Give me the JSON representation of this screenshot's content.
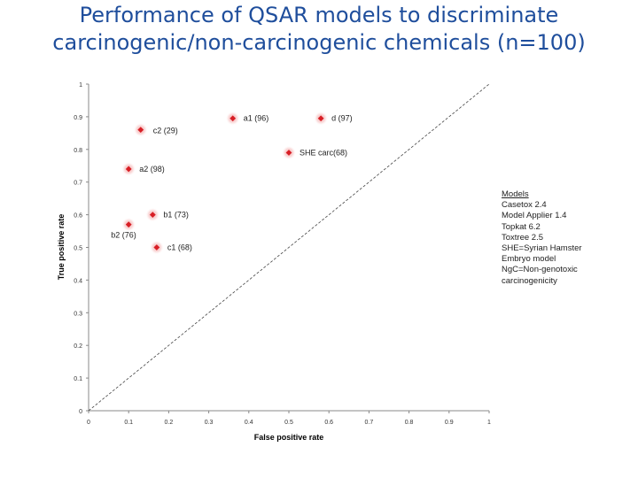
{
  "title_line1": "Performance of QSAR models to discriminate",
  "title_line2": "carcinogenic/non-carcinogenic chemicals (n=100)",
  "colors": {
    "title": "#1f4e9c",
    "point": "#d81f26",
    "glow": "#f4a7a7",
    "diagonal": "#444444"
  },
  "legend": {
    "heading": "Models",
    "items": [
      "Casetox 2.4",
      "Model Applier 1.4",
      "Topkat 6.2",
      "Toxtree 2.5",
      "SHE=Syrian Hamster",
      "Embryo model",
      "NgC=Non-genotoxic",
      "carcinogenicity"
    ]
  },
  "chart_data": {
    "type": "scatter",
    "title": "",
    "xlabel": "False positive rate",
    "ylabel": "True positive rate",
    "xlim": [
      0,
      1
    ],
    "ylim": [
      0,
      1
    ],
    "xticks": [
      "0",
      "0.1",
      "0.2",
      "0.3",
      "0.4",
      "0.5",
      "0.6",
      "0.7",
      "0.8",
      "0.9",
      "1"
    ],
    "yticks": [
      "0",
      "0.1",
      "0.2",
      "0.3",
      "0.4",
      "0.5",
      "0.6",
      "0.7",
      "0.8",
      "0.9",
      "1"
    ],
    "reference_line": {
      "from": [
        0,
        0
      ],
      "to": [
        1,
        1
      ],
      "style": "dashed"
    },
    "points": [
      {
        "label": "a1 (96)",
        "x": 0.36,
        "y": 0.895,
        "label_pos": "right"
      },
      {
        "label": "d (97)",
        "x": 0.58,
        "y": 0.895,
        "label_pos": "right"
      },
      {
        "label": "c2 (29)",
        "x": 0.13,
        "y": 0.86,
        "label_pos": "right-below"
      },
      {
        "label": "SHE carc(68)",
        "x": 0.5,
        "y": 0.79,
        "label_pos": "right"
      },
      {
        "label": "a2 (98)",
        "x": 0.1,
        "y": 0.74,
        "label_pos": "right"
      },
      {
        "label": "b1 (73)",
        "x": 0.16,
        "y": 0.6,
        "label_pos": "right"
      },
      {
        "label": "b2 (76)",
        "x": 0.1,
        "y": 0.57,
        "label_pos": "below-left"
      },
      {
        "label": "c1 (68)",
        "x": 0.17,
        "y": 0.5,
        "label_pos": "right"
      }
    ]
  }
}
